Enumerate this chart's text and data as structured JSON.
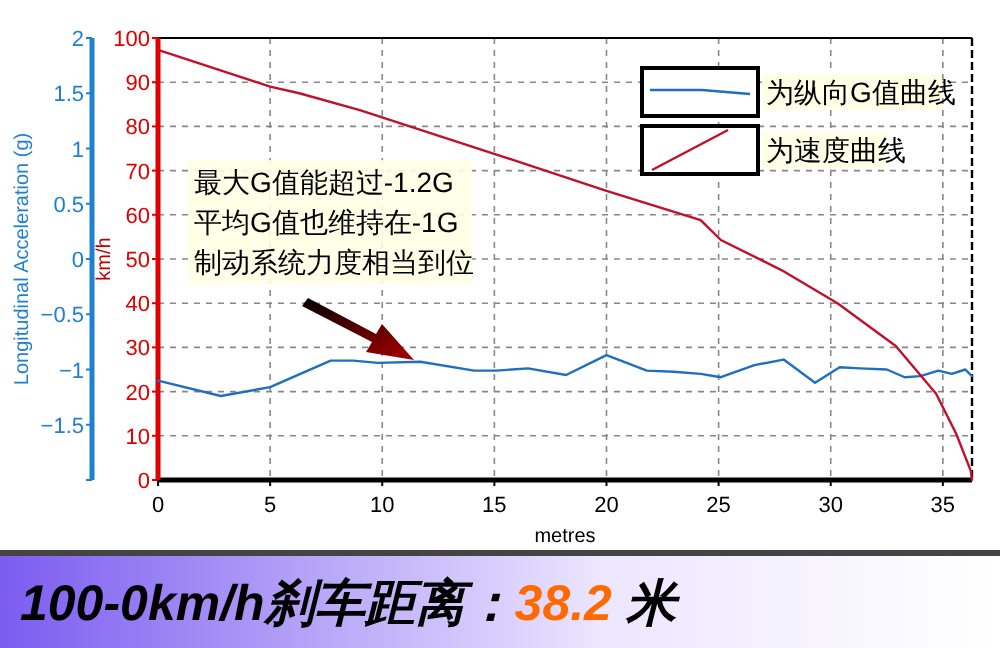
{
  "chart_data": {
    "type": "line",
    "title": "100-0km/h刹车距离：38.2 米",
    "xlabel": "metres",
    "ylabel": "km/h",
    "y2label": "Longitudinal Acceleration (g)",
    "annotations": [
      "最大G值能超过-1.2G",
      "平均G值也维持在-1G",
      "制动系统力度相当到位"
    ],
    "xlim": [
      0,
      36.3
    ],
    "xticks": [
      0,
      5,
      10,
      15,
      20,
      25,
      30,
      35
    ],
    "ylim": [
      0,
      100
    ],
    "yticks": [
      0,
      10,
      20,
      30,
      40,
      50,
      60,
      70,
      80,
      90,
      100
    ],
    "y2lim": [
      -2,
      2
    ],
    "y2ticks": [
      {
        "value": -2,
        "label": null
      },
      -1.5,
      -1,
      -0.5,
      0,
      0.5,
      1,
      1.5,
      2
    ],
    "grid": true,
    "legend": "top right",
    "series": [
      {
        "name": "为纵向G值曲线",
        "color": "#1f6fc0",
        "axis": "y2",
        "x": [
          0,
          2.8,
          5,
          7.7,
          8.7,
          9.8,
          11.7,
          14.1,
          15.1,
          16.5,
          18.2,
          20,
          21.8,
          23,
          24.2,
          25.1,
          26.6,
          27.9,
          29.3,
          30.4,
          31.3,
          32.5,
          33.3,
          34,
          34.8,
          35.4,
          36,
          36.3
        ],
        "values": [
          -1.1,
          -1.24,
          -1.16,
          -0.92,
          -0.92,
          -0.94,
          -0.93,
          -1.01,
          -1.01,
          -0.99,
          -1.05,
          -0.87,
          -1.01,
          -1.02,
          -1.04,
          -1.07,
          -0.96,
          -0.91,
          -1.12,
          -0.98,
          -0.99,
          -1,
          -1.07,
          -1.06,
          -1.01,
          -1.04,
          -1,
          -1.06
        ]
      },
      {
        "name": "为速度曲线",
        "color": "#c0102a",
        "x": [
          0,
          5,
          6.3,
          9,
          15.3,
          20,
          24.2,
          25.1,
          27.8,
          30.3,
          32.9,
          34.7,
          35.6,
          36.25,
          36.3
        ],
        "values": [
          97.3,
          89,
          87.5,
          83.7,
          73.3,
          65.4,
          58.8,
          54.3,
          47.5,
          40,
          30.3,
          19.5,
          10.4,
          2,
          0
        ]
      }
    ]
  }
}
